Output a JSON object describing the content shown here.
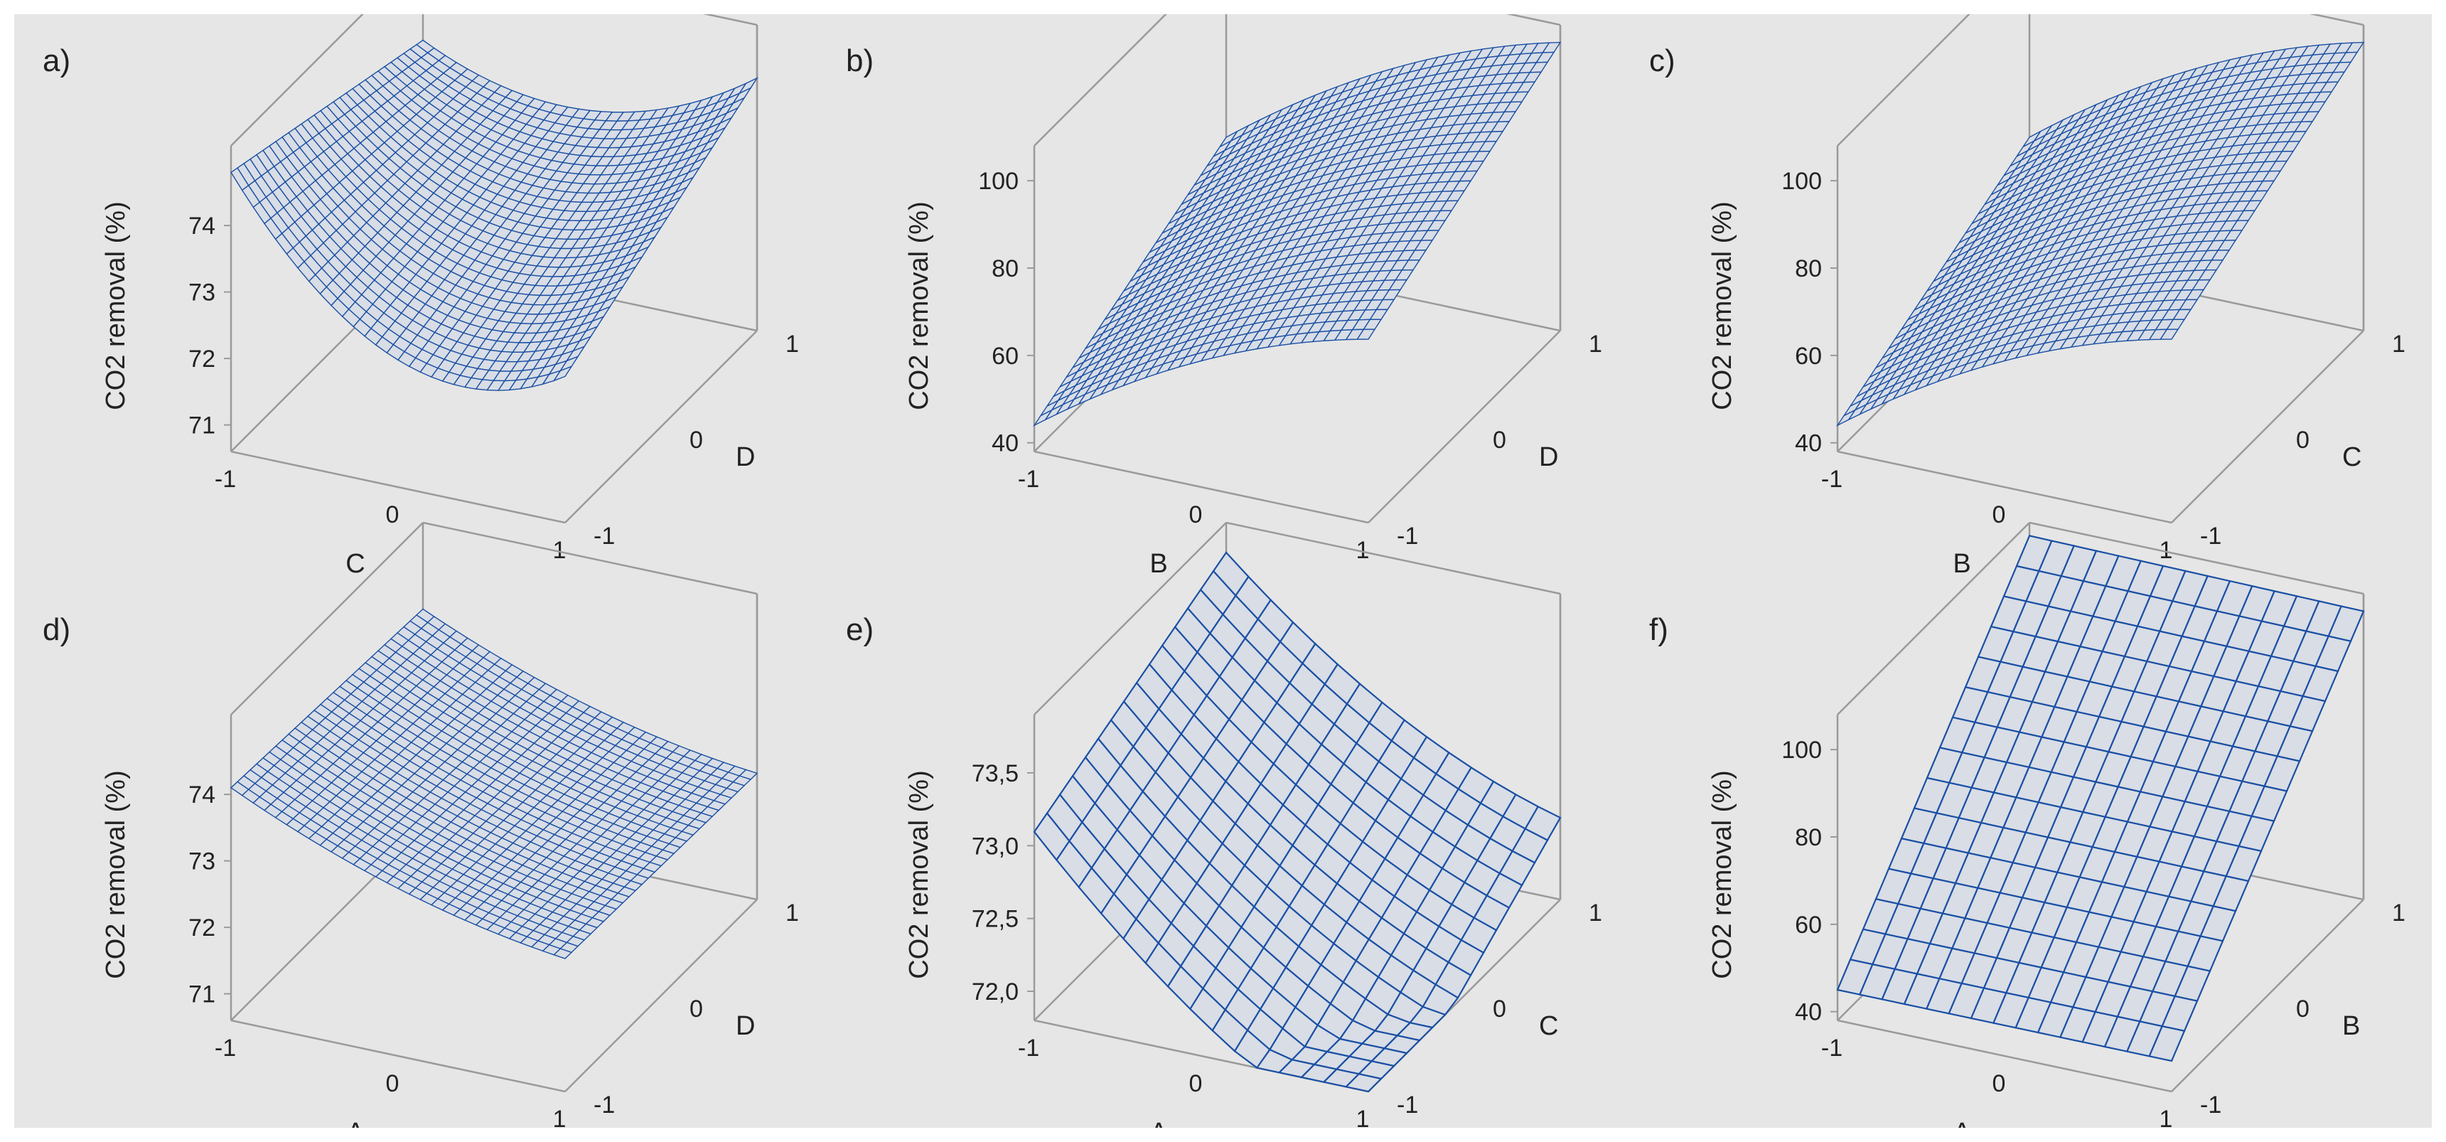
{
  "figure": {
    "background_color": "#e6e6e6",
    "surface_stroke_color": "#1a4fa3",
    "surface_fill_color": "#d8dde6",
    "box_line_color": "#9a9a9a"
  },
  "chart_data": [
    {
      "panel": "a)",
      "type": "surface",
      "x_label": "C",
      "y_label": "D",
      "z_label": "CO2 removal (%)",
      "x_ticks": [
        "-1",
        "0",
        "1"
      ],
      "y_ticks": [
        "-1",
        "0",
        "1"
      ],
      "z_ticks": [
        "71",
        "72",
        "73",
        "74"
      ],
      "x_range": [
        -1,
        1
      ],
      "y_range": [
        -1,
        1
      ],
      "z_range": [
        70.6,
        75.2
      ],
      "corner_values": {
        "x-1_y-1": 74.8,
        "x1_y-1": 72.8,
        "x-1_y1": 73.9,
        "x1_y1": 74.4
      },
      "grid": 30
    },
    {
      "panel": "b)",
      "type": "surface",
      "x_label": "B",
      "y_label": "D",
      "z_label": "CO2 removal (%)",
      "x_ticks": [
        "-1",
        "0",
        "1"
      ],
      "y_ticks": [
        "-1",
        "0",
        "1"
      ],
      "z_ticks": [
        "40",
        "60",
        "80",
        "100"
      ],
      "x_range": [
        -1,
        1
      ],
      "y_range": [
        -1,
        1
      ],
      "z_range": [
        38,
        108
      ],
      "corner_values": {
        "x-1_y-1": 44,
        "x1_y-1": 80,
        "x-1_y1": 66,
        "x1_y1": 104
      },
      "grid": 30
    },
    {
      "panel": "c)",
      "type": "surface",
      "x_label": "B",
      "y_label": "C",
      "z_label": "CO2 removal (%)",
      "x_ticks": [
        "-1",
        "0",
        "1"
      ],
      "y_ticks": [
        "-1",
        "0",
        "1"
      ],
      "z_ticks": [
        "40",
        "60",
        "80",
        "100"
      ],
      "x_range": [
        -1,
        1
      ],
      "y_range": [
        -1,
        1
      ],
      "z_range": [
        38,
        108
      ],
      "corner_values": {
        "x-1_y-1": 44,
        "x1_y-1": 80,
        "x-1_y1": 66,
        "x1_y1": 104
      },
      "grid": 30
    },
    {
      "panel": "d)",
      "type": "surface",
      "x_label": "A",
      "y_label": "D",
      "z_label": "CO2 removal (%)",
      "x_ticks": [
        "-1",
        "0",
        "1"
      ],
      "y_ticks": [
        "-1",
        "0",
        "1"
      ],
      "z_ticks": [
        "71",
        "72",
        "73",
        "74"
      ],
      "x_range": [
        -1,
        1
      ],
      "y_range": [
        -1,
        1
      ],
      "z_range": [
        70.6,
        75.2
      ],
      "corner_values": {
        "x-1_y-1": 74.1,
        "x1_y-1": 72.6,
        "x-1_y1": 73.9,
        "x1_y1": 72.5
      },
      "grid": 30
    },
    {
      "panel": "e)",
      "type": "surface",
      "x_label": "A",
      "y_label": "C",
      "z_label": "CO2 removal (%)",
      "x_ticks": [
        "-1",
        "0",
        "1"
      ],
      "y_ticks": [
        "-1",
        "0",
        "1"
      ],
      "z_ticks": [
        "72,0",
        "72,5",
        "73,0",
        "73,5"
      ],
      "x_range": [
        -1,
        1
      ],
      "y_range": [
        -1,
        1
      ],
      "z_range": [
        71.8,
        73.9
      ],
      "corner_values": {
        "x-1_y-1": 73.2,
        "x1_y-1": 71.9,
        "x-1_y1": 73.8,
        "x1_y1": 72.9
      },
      "grid": 15
    },
    {
      "panel": "f)",
      "type": "surface",
      "x_label": "A",
      "y_label": "B",
      "z_label": "CO2 removal (%)",
      "x_ticks": [
        "-1",
        "0",
        "1"
      ],
      "y_ticks": [
        "-1",
        "0",
        "1"
      ],
      "z_ticks": [
        "40",
        "60",
        "80",
        "100"
      ],
      "x_range": [
        -1,
        1
      ],
      "y_range": [
        -1,
        1
      ],
      "z_range": [
        38,
        108
      ],
      "corner_values": {
        "x-1_y-1": 45,
        "x1_y-1": 45,
        "x-1_y1": 105,
        "x1_y1": 104
      },
      "grid": 15
    }
  ]
}
